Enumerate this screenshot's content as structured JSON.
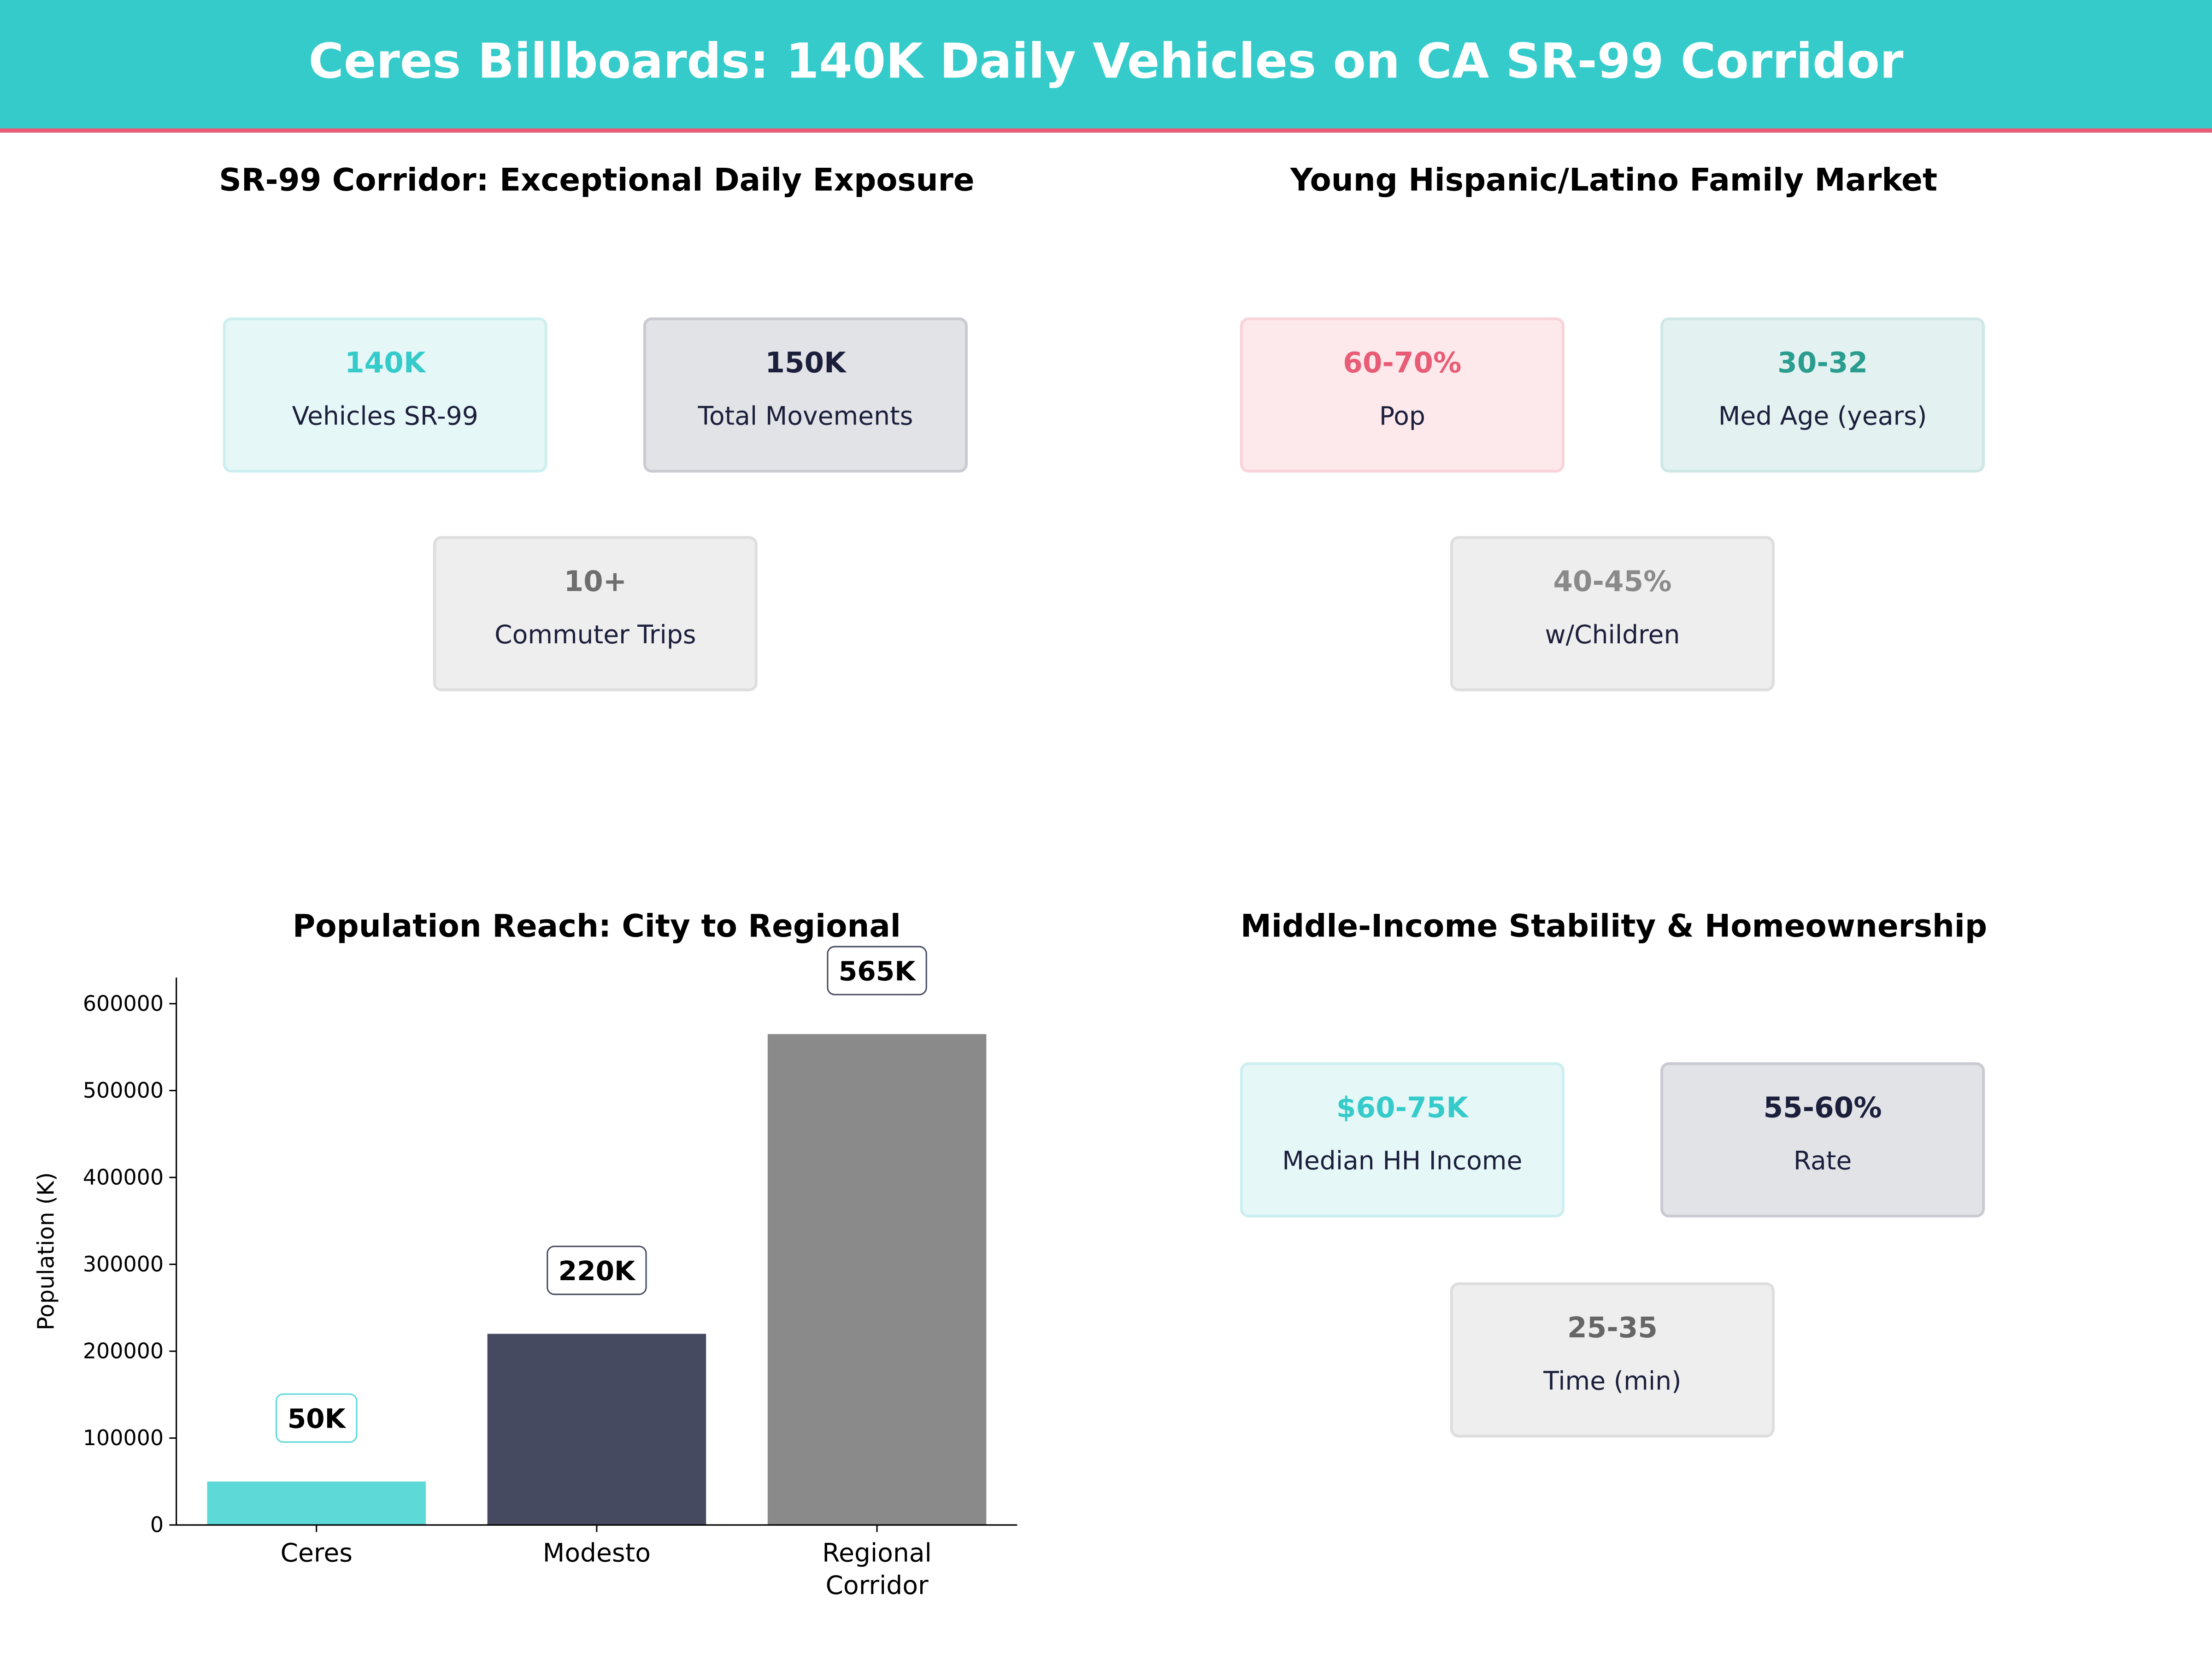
{
  "header": {
    "title": "Ceres Billboards: 140K Daily Vehicles on CA SR-99 Corridor",
    "bg_color": "#36CBCB",
    "accent_color": "#E85D75"
  },
  "panels": [
    {
      "title": "SR-99 Corridor: Exceptional Daily Exposure",
      "cards": [
        {
          "value": "140K",
          "label": "Vehicles SR-99",
          "value_color": "#36CBCB",
          "bg": "#E6F7F7",
          "border": "#CDEFEF"
        },
        {
          "value": "150K",
          "label": "Total  Movements",
          "value_color": "#1B1F3B",
          "bg": "#E2E3E7",
          "border": "#CACBD2"
        },
        {
          "value": "10+",
          "label": "Commuter Trips",
          "value_color": "#6E6E6E",
          "bg": "#EEEEEE",
          "border": "#DEDEDE"
        }
      ]
    },
    {
      "title": "Young Hispanic/Latino Family Market",
      "cards": [
        {
          "value": "60-70%",
          "label": "Pop",
          "value_color": "#E85D75",
          "bg": "#FDE9EC",
          "border": "#F9D3DA"
        },
        {
          "value": "30-32",
          "label": "Med Age (years)",
          "value_color": "#2A9D8F",
          "bg": "#E3F1F1",
          "border": "#CFE7E6"
        },
        {
          "value": "40-45%",
          "label": "w/Children",
          "value_color": "#8A8A8A",
          "bg": "#EEEEEE",
          "border": "#DEDEDE"
        }
      ]
    },
    {
      "title": "Middle-Income Stability & Homeownership",
      "cards": [
        {
          "value": "$60-75K",
          "label": "Median HH Income",
          "value_color": "#36CBCB",
          "bg": "#E6F7F7",
          "border": "#CDEFEF"
        },
        {
          "value": "55-60%",
          "label": "Rate",
          "value_color": "#1B1F3B",
          "bg": "#E2E3E7",
          "border": "#CACBD2"
        },
        {
          "value": "25-35",
          "label": "Time (min)",
          "value_color": "#666666",
          "bg": "#EEEEEE",
          "border": "#DEDEDE"
        }
      ]
    }
  ],
  "chart_data": {
    "type": "bar",
    "title": "Population Reach: City to Regional",
    "categories": [
      "Ceres",
      "Modesto",
      "Regional\nCorridor"
    ],
    "values": [
      50000,
      220000,
      565000
    ],
    "data_labels": [
      "50K",
      "220K",
      "565K"
    ],
    "colors": [
      "#5DD9D7",
      "#454A60",
      "#8A8A8A"
    ],
    "xlabel": "",
    "ylabel": "Population (K)",
    "ylim": [
      0,
      630000
    ],
    "yticks": [
      0,
      100000,
      200000,
      300000,
      400000,
      500000,
      600000
    ],
    "grid": false
  }
}
